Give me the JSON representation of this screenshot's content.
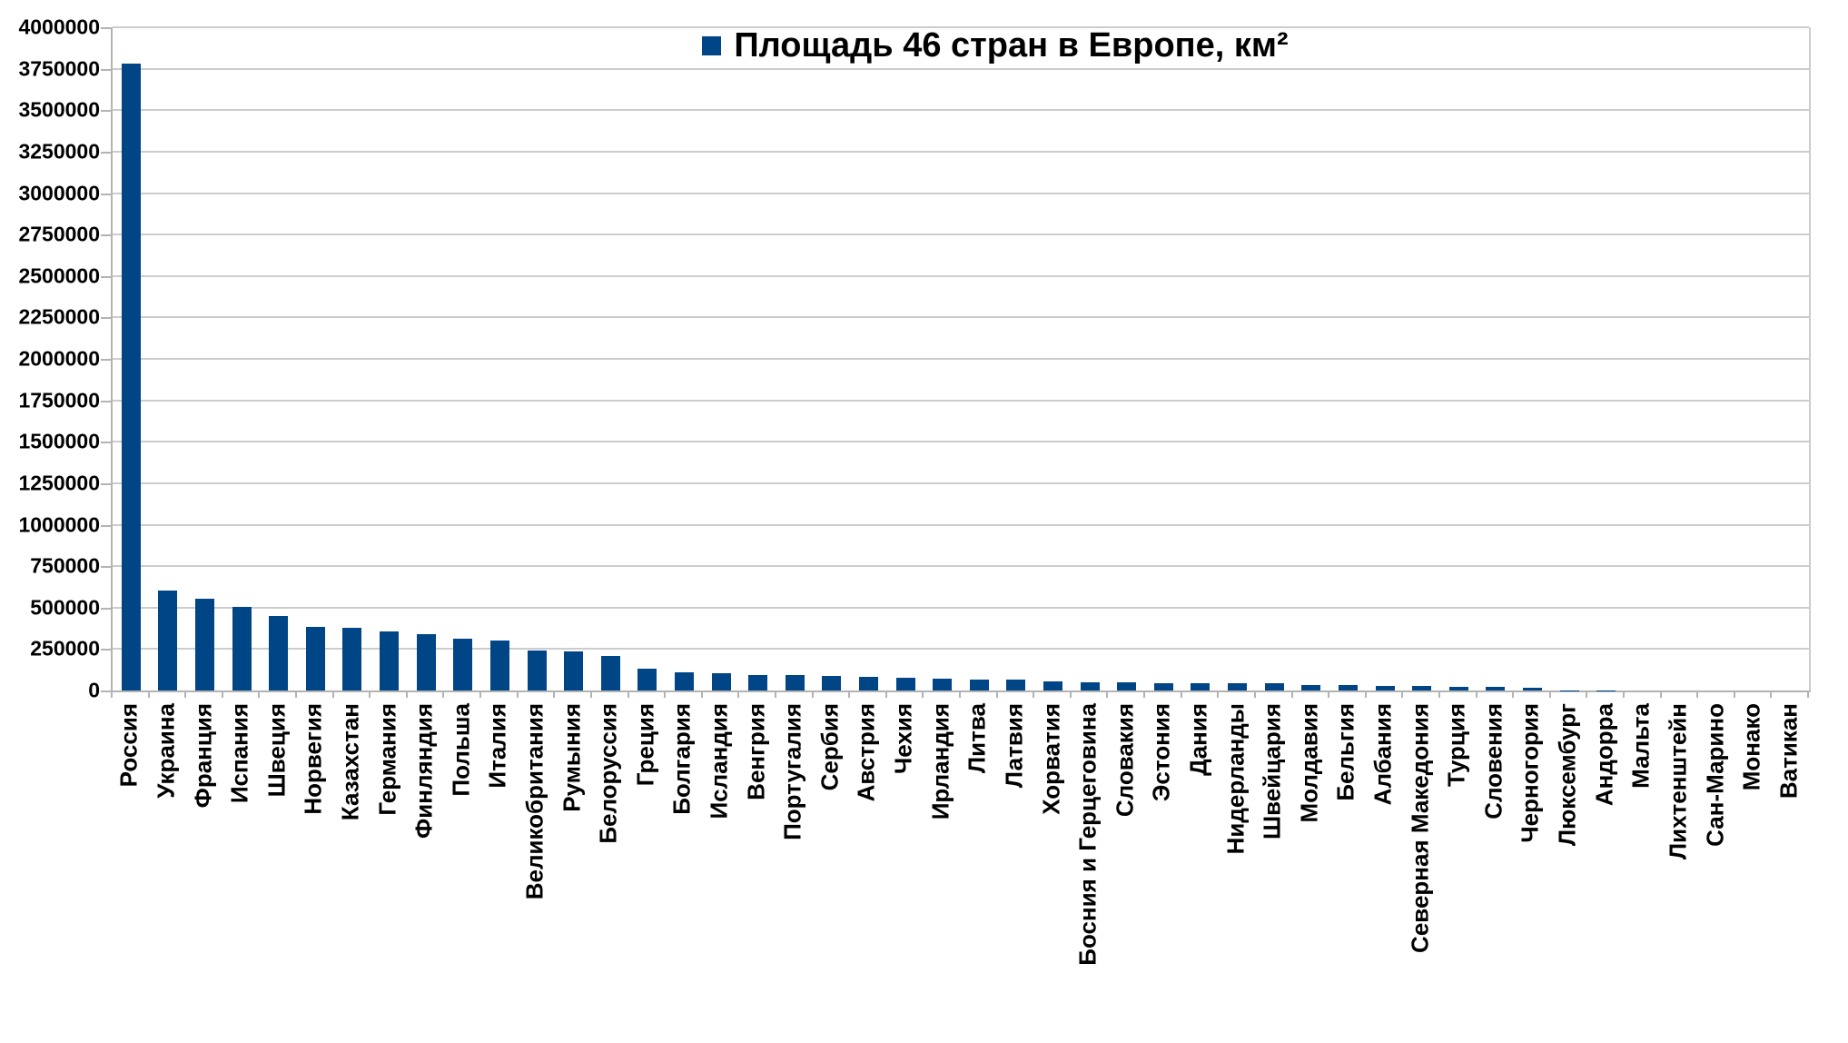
{
  "chart_data": {
    "type": "bar",
    "title": "Площадь 46 стран в Европе, км²",
    "legend": {
      "label": "Площадь 46 стран в Европе, км²",
      "position": "top-center",
      "marker_color": "#004586"
    },
    "categories": [
      "Россия",
      "Украина",
      "Франция",
      "Испания",
      "Швеция",
      "Норвегия",
      "Казахстан",
      "Германия",
      "Финляндия",
      "Польша",
      "Италия",
      "Великобритания",
      "Румыния",
      "Белоруссия",
      "Греция",
      "Болгария",
      "Исландия",
      "Венгрия",
      "Португалия",
      "Сербия",
      "Австрия",
      "Чехия",
      "Ирландия",
      "Литва",
      "Латвия",
      "Хорватия",
      "Босния и Герцеговина",
      "Словакия",
      "Эстония",
      "Дания",
      "Нидерланды",
      "Швейцария",
      "Молдавия",
      "Бельгия",
      "Албания",
      "Северная Македония",
      "Турция",
      "Словения",
      "Черногория",
      "Люксембург",
      "Андорра",
      "Мальта",
      "Лихтенштейн",
      "Сан-Марино",
      "Монако",
      "Ватикан"
    ],
    "values": [
      3783533,
      603500,
      551500,
      505990,
      447435,
      385207,
      380000,
      357588,
      338440,
      312696,
      301340,
      243809,
      238391,
      207600,
      131957,
      110994,
      103000,
      93028,
      92212,
      88361,
      83879,
      78866,
      70273,
      65300,
      64589,
      56594,
      51197,
      49035,
      45227,
      43094,
      41543,
      41284,
      33846,
      30528,
      28748,
      25713,
      23764,
      20273,
      13812,
      2586,
      468,
      316,
      160,
      61,
      2,
      0.44
    ],
    "ylim": [
      0,
      4000000
    ],
    "ytick_step": 250000,
    "ytick_labels": [
      "0",
      "250000",
      "500000",
      "750000",
      "1000000",
      "1250000",
      "1500000",
      "1750000",
      "2000000",
      "2250000",
      "2500000",
      "2750000",
      "3000000",
      "3250000",
      "3500000",
      "3750000",
      "4000000"
    ],
    "xlabel": "",
    "ylabel": "",
    "grid": true,
    "legend_visible": true,
    "bar_color": "#004586",
    "gridline_color": "#cccccc",
    "axis_color": "#b3b3b3",
    "background": "#ffffff"
  }
}
